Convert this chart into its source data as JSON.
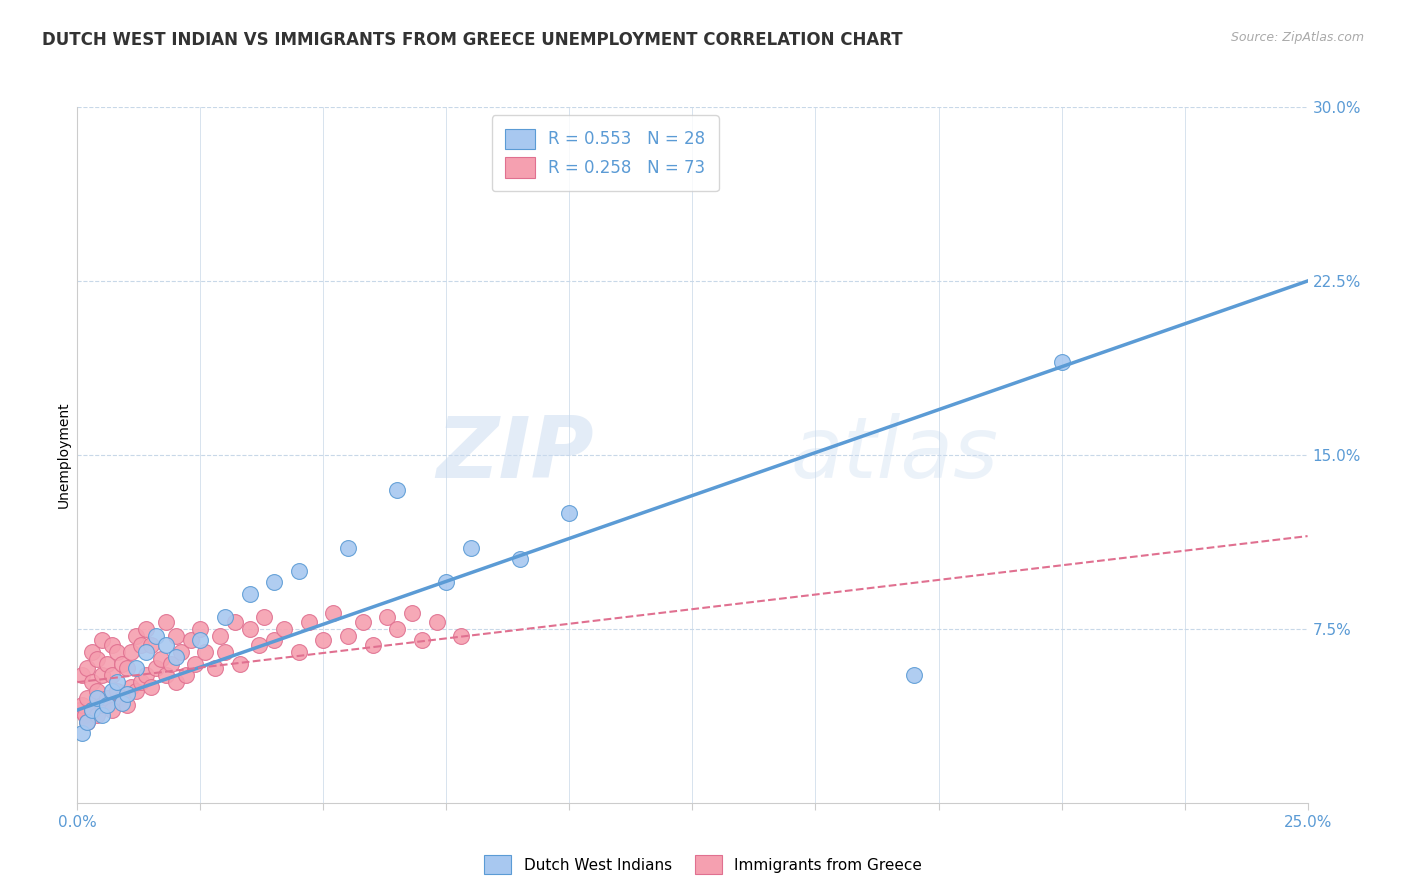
{
  "title": "DUTCH WEST INDIAN VS IMMIGRANTS FROM GREECE UNEMPLOYMENT CORRELATION CHART",
  "source": "Source: ZipAtlas.com",
  "ylabel": "Unemployment",
  "xlim": [
    0.0,
    0.25
  ],
  "ylim": [
    0.0,
    0.3
  ],
  "yticks": [
    0.0,
    0.075,
    0.15,
    0.225,
    0.3
  ],
  "ytick_labels": [
    "",
    "7.5%",
    "15.0%",
    "22.5%",
    "30.0%"
  ],
  "xticks": [
    0.0,
    0.025,
    0.05,
    0.075,
    0.1,
    0.125,
    0.15,
    0.175,
    0.2,
    0.225,
    0.25
  ],
  "xtick_labels_show": {
    "0.0": "0.0%",
    "0.25": "25.0%"
  },
  "legend_entries": [
    {
      "label": "R = 0.553   N = 28",
      "color": "#a8c8f0"
    },
    {
      "label": "R = 0.258   N = 73",
      "color": "#f5a0b0"
    }
  ],
  "bottom_legend": [
    {
      "label": "Dutch West Indians",
      "color": "#a8c8f0"
    },
    {
      "label": "Immigrants from Greece",
      "color": "#f5a0b0"
    }
  ],
  "blue_scatter_x": [
    0.001,
    0.002,
    0.003,
    0.004,
    0.005,
    0.006,
    0.007,
    0.008,
    0.009,
    0.01,
    0.012,
    0.014,
    0.016,
    0.018,
    0.02,
    0.025,
    0.03,
    0.035,
    0.04,
    0.045,
    0.055,
    0.065,
    0.075,
    0.08,
    0.09,
    0.1,
    0.17,
    0.2
  ],
  "blue_scatter_y": [
    0.03,
    0.035,
    0.04,
    0.045,
    0.038,
    0.042,
    0.048,
    0.052,
    0.043,
    0.047,
    0.058,
    0.065,
    0.072,
    0.068,
    0.063,
    0.07,
    0.08,
    0.09,
    0.095,
    0.1,
    0.11,
    0.135,
    0.095,
    0.11,
    0.105,
    0.125,
    0.055,
    0.19
  ],
  "pink_scatter_x": [
    0.0005,
    0.001,
    0.001,
    0.0015,
    0.002,
    0.002,
    0.002,
    0.003,
    0.003,
    0.003,
    0.004,
    0.004,
    0.004,
    0.005,
    0.005,
    0.005,
    0.006,
    0.006,
    0.007,
    0.007,
    0.007,
    0.008,
    0.008,
    0.009,
    0.009,
    0.01,
    0.01,
    0.011,
    0.011,
    0.012,
    0.012,
    0.013,
    0.013,
    0.014,
    0.014,
    0.015,
    0.015,
    0.016,
    0.017,
    0.018,
    0.018,
    0.019,
    0.02,
    0.02,
    0.021,
    0.022,
    0.023,
    0.024,
    0.025,
    0.026,
    0.028,
    0.029,
    0.03,
    0.032,
    0.033,
    0.035,
    0.037,
    0.038,
    0.04,
    0.042,
    0.045,
    0.047,
    0.05,
    0.052,
    0.055,
    0.058,
    0.06,
    0.063,
    0.065,
    0.068,
    0.07,
    0.073,
    0.078
  ],
  "pink_scatter_y": [
    0.04,
    0.042,
    0.055,
    0.038,
    0.045,
    0.035,
    0.058,
    0.04,
    0.052,
    0.065,
    0.038,
    0.048,
    0.062,
    0.042,
    0.055,
    0.07,
    0.045,
    0.06,
    0.04,
    0.055,
    0.068,
    0.048,
    0.065,
    0.045,
    0.06,
    0.042,
    0.058,
    0.05,
    0.065,
    0.048,
    0.072,
    0.052,
    0.068,
    0.055,
    0.075,
    0.05,
    0.068,
    0.058,
    0.062,
    0.055,
    0.078,
    0.06,
    0.052,
    0.072,
    0.065,
    0.055,
    0.07,
    0.06,
    0.075,
    0.065,
    0.058,
    0.072,
    0.065,
    0.078,
    0.06,
    0.075,
    0.068,
    0.08,
    0.07,
    0.075,
    0.065,
    0.078,
    0.07,
    0.082,
    0.072,
    0.078,
    0.068,
    0.08,
    0.075,
    0.082,
    0.07,
    0.078,
    0.072
  ],
  "blue_line_x": [
    0.0,
    0.25
  ],
  "blue_line_y": [
    0.04,
    0.225
  ],
  "pink_line_x": [
    0.0,
    0.25
  ],
  "pink_line_y": [
    0.052,
    0.115
  ],
  "blue_color": "#5b9bd5",
  "pink_color": "#e07090",
  "blue_scatter_color": "#a8c8f0",
  "pink_scatter_color": "#f5a0b0",
  "grid_color": "#c8d8e8",
  "watermark_zip": "ZIP",
  "watermark_atlas": "atlas",
  "background_color": "#ffffff",
  "title_fontsize": 12,
  "axis_label_fontsize": 10,
  "tick_fontsize": 11,
  "tick_color": "#5b9bd5"
}
